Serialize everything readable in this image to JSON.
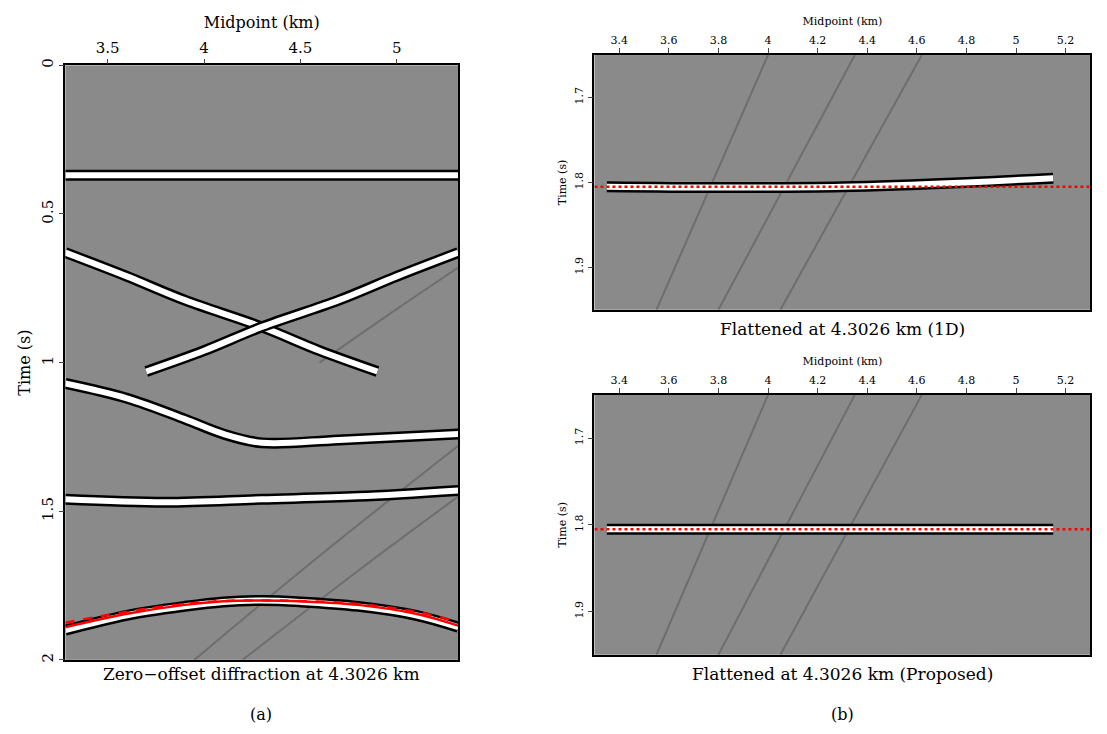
{
  "chart_data": [
    {
      "type": "line",
      "title": "Zero−offset diffraction at 4.3026 km",
      "xlabel": "Midpoint (km)",
      "ylabel": "Time (s)",
      "xlim": [
        3.28,
        5.32
      ],
      "xticks": [
        3.5,
        4,
        4.5,
        5
      ],
      "ylim": [
        0,
        2
      ],
      "yticks": [
        0,
        0.5,
        1,
        1.5,
        2
      ],
      "annotations": [
        "(a)"
      ],
      "series": [
        {
          "color": "#6e6e6e",
          "line_style": "solid",
          "x": [
            3.95,
            4.6,
            5.32
          ],
          "values": [
            2.0,
            1.65,
            1.28
          ]
        },
        {
          "color": "#6e6e6e",
          "line_style": "solid",
          "x": [
            4.2,
            4.8,
            5.32
          ],
          "values": [
            2.0,
            1.7,
            1.45
          ]
        },
        {
          "color": "#6e6e6e",
          "line_style": "solid",
          "x": [
            4.6,
            5.0,
            5.32
          ],
          "values": [
            1.0,
            0.82,
            0.68
          ]
        },
        {
          "color": "#ffffff",
          "line_style": "solid",
          "x": [
            3.28,
            4.3,
            5.32
          ],
          "values": [
            0.37,
            0.37,
            0.37
          ]
        },
        {
          "color": "#ffffff",
          "line_style": "solid",
          "x": [
            3.28,
            3.6,
            3.9,
            4.3,
            4.6,
            4.9
          ],
          "values": [
            0.63,
            0.71,
            0.79,
            0.88,
            0.96,
            1.03
          ]
        },
        {
          "color": "#ffffff",
          "line_style": "solid",
          "x": [
            5.32,
            5.0,
            4.7,
            4.3,
            4.0,
            3.7
          ],
          "values": [
            0.63,
            0.71,
            0.79,
            0.88,
            0.96,
            1.03
          ]
        },
        {
          "color": "#ffffff",
          "line_style": "solid",
          "x": [
            3.28,
            3.6,
            3.9,
            4.1,
            4.3,
            4.7,
            5.32
          ],
          "values": [
            1.07,
            1.12,
            1.19,
            1.24,
            1.27,
            1.26,
            1.24
          ]
        },
        {
          "color": "#ffffff",
          "line_style": "solid",
          "x": [
            3.28,
            3.8,
            4.3,
            4.8,
            5.32
          ],
          "values": [
            1.46,
            1.47,
            1.46,
            1.45,
            1.43
          ]
        },
        {
          "color": "#ffffff",
          "line_style": "solid",
          "x": [
            3.28,
            3.6,
            3.9,
            4.1,
            4.3026,
            4.5,
            4.8,
            5.1,
            5.32
          ],
          "values": [
            1.9,
            1.85,
            1.82,
            1.805,
            1.8,
            1.805,
            1.82,
            1.85,
            1.89
          ]
        },
        {
          "color": "#ff0000",
          "line_style": "solid",
          "x": [
            3.28,
            3.6,
            3.9,
            4.1,
            4.3026,
            4.5,
            4.8,
            5.1,
            5.32
          ],
          "values": [
            1.89,
            1.845,
            1.815,
            1.803,
            1.8,
            1.803,
            1.815,
            1.845,
            1.885
          ]
        },
        {
          "color": "#ff0000",
          "line_style": "dash",
          "x": [
            3.28,
            3.6,
            3.9,
            4.1,
            4.3026,
            4.5,
            4.8,
            5.1,
            5.32
          ],
          "values": [
            1.875,
            1.838,
            1.812,
            1.802,
            1.8,
            1.802,
            1.812,
            1.838,
            1.872
          ]
        }
      ]
    },
    {
      "type": "line",
      "title": "Flattened at 4.3026 km (1D)",
      "xlabel": "Midpoint (km)",
      "ylabel": "Time (s)",
      "xlim": [
        3.3,
        5.3
      ],
      "xticks": [
        3.4,
        3.6,
        3.8,
        4,
        4.2,
        4.4,
        4.6,
        4.8,
        5,
        5.2
      ],
      "ylim": [
        1.65,
        1.95
      ],
      "yticks": [
        1.7,
        1.8,
        1.9
      ],
      "series": [
        {
          "color": "#6e6e6e",
          "line_style": "solid",
          "x": [
            3.55,
            4.0
          ],
          "values": [
            1.95,
            1.65
          ]
        },
        {
          "color": "#6e6e6e",
          "line_style": "solid",
          "x": [
            3.8,
            4.35
          ],
          "values": [
            1.95,
            1.65
          ]
        },
        {
          "color": "#6e6e6e",
          "line_style": "solid",
          "x": [
            4.05,
            4.62
          ],
          "values": [
            1.95,
            1.65
          ]
        },
        {
          "color": "#ffffff",
          "line_style": "solid",
          "x": [
            3.35,
            3.8,
            4.3,
            4.8,
            5.15
          ],
          "values": [
            1.805,
            1.806,
            1.805,
            1.8,
            1.795
          ]
        },
        {
          "color": "#ff0000",
          "line_style": "dot",
          "x": [
            3.3,
            5.3
          ],
          "values": [
            1.805,
            1.805
          ]
        }
      ]
    },
    {
      "type": "line",
      "title": "Flattened at 4.3026 km (Proposed)",
      "xlabel": "Midpoint (km)",
      "ylabel": "Time (s)",
      "xlim": [
        3.3,
        5.3
      ],
      "xticks": [
        3.4,
        3.6,
        3.8,
        4,
        4.2,
        4.4,
        4.6,
        4.8,
        5,
        5.2
      ],
      "ylim": [
        1.65,
        1.95
      ],
      "yticks": [
        1.7,
        1.8,
        1.9
      ],
      "annotations": [
        "(b)"
      ],
      "series": [
        {
          "color": "#6e6e6e",
          "line_style": "solid",
          "x": [
            3.55,
            4.0
          ],
          "values": [
            1.95,
            1.65
          ]
        },
        {
          "color": "#6e6e6e",
          "line_style": "solid",
          "x": [
            3.8,
            4.35
          ],
          "values": [
            1.95,
            1.65
          ]
        },
        {
          "color": "#6e6e6e",
          "line_style": "solid",
          "x": [
            4.05,
            4.62
          ],
          "values": [
            1.95,
            1.65
          ]
        },
        {
          "color": "#ffffff",
          "line_style": "solid",
          "x": [
            3.35,
            3.8,
            4.3,
            4.8,
            5.15
          ],
          "values": [
            1.805,
            1.805,
            1.805,
            1.805,
            1.805
          ]
        },
        {
          "color": "#ff0000",
          "line_style": "dot",
          "x": [
            3.3,
            5.3
          ],
          "values": [
            1.805,
            1.805
          ]
        }
      ]
    }
  ]
}
